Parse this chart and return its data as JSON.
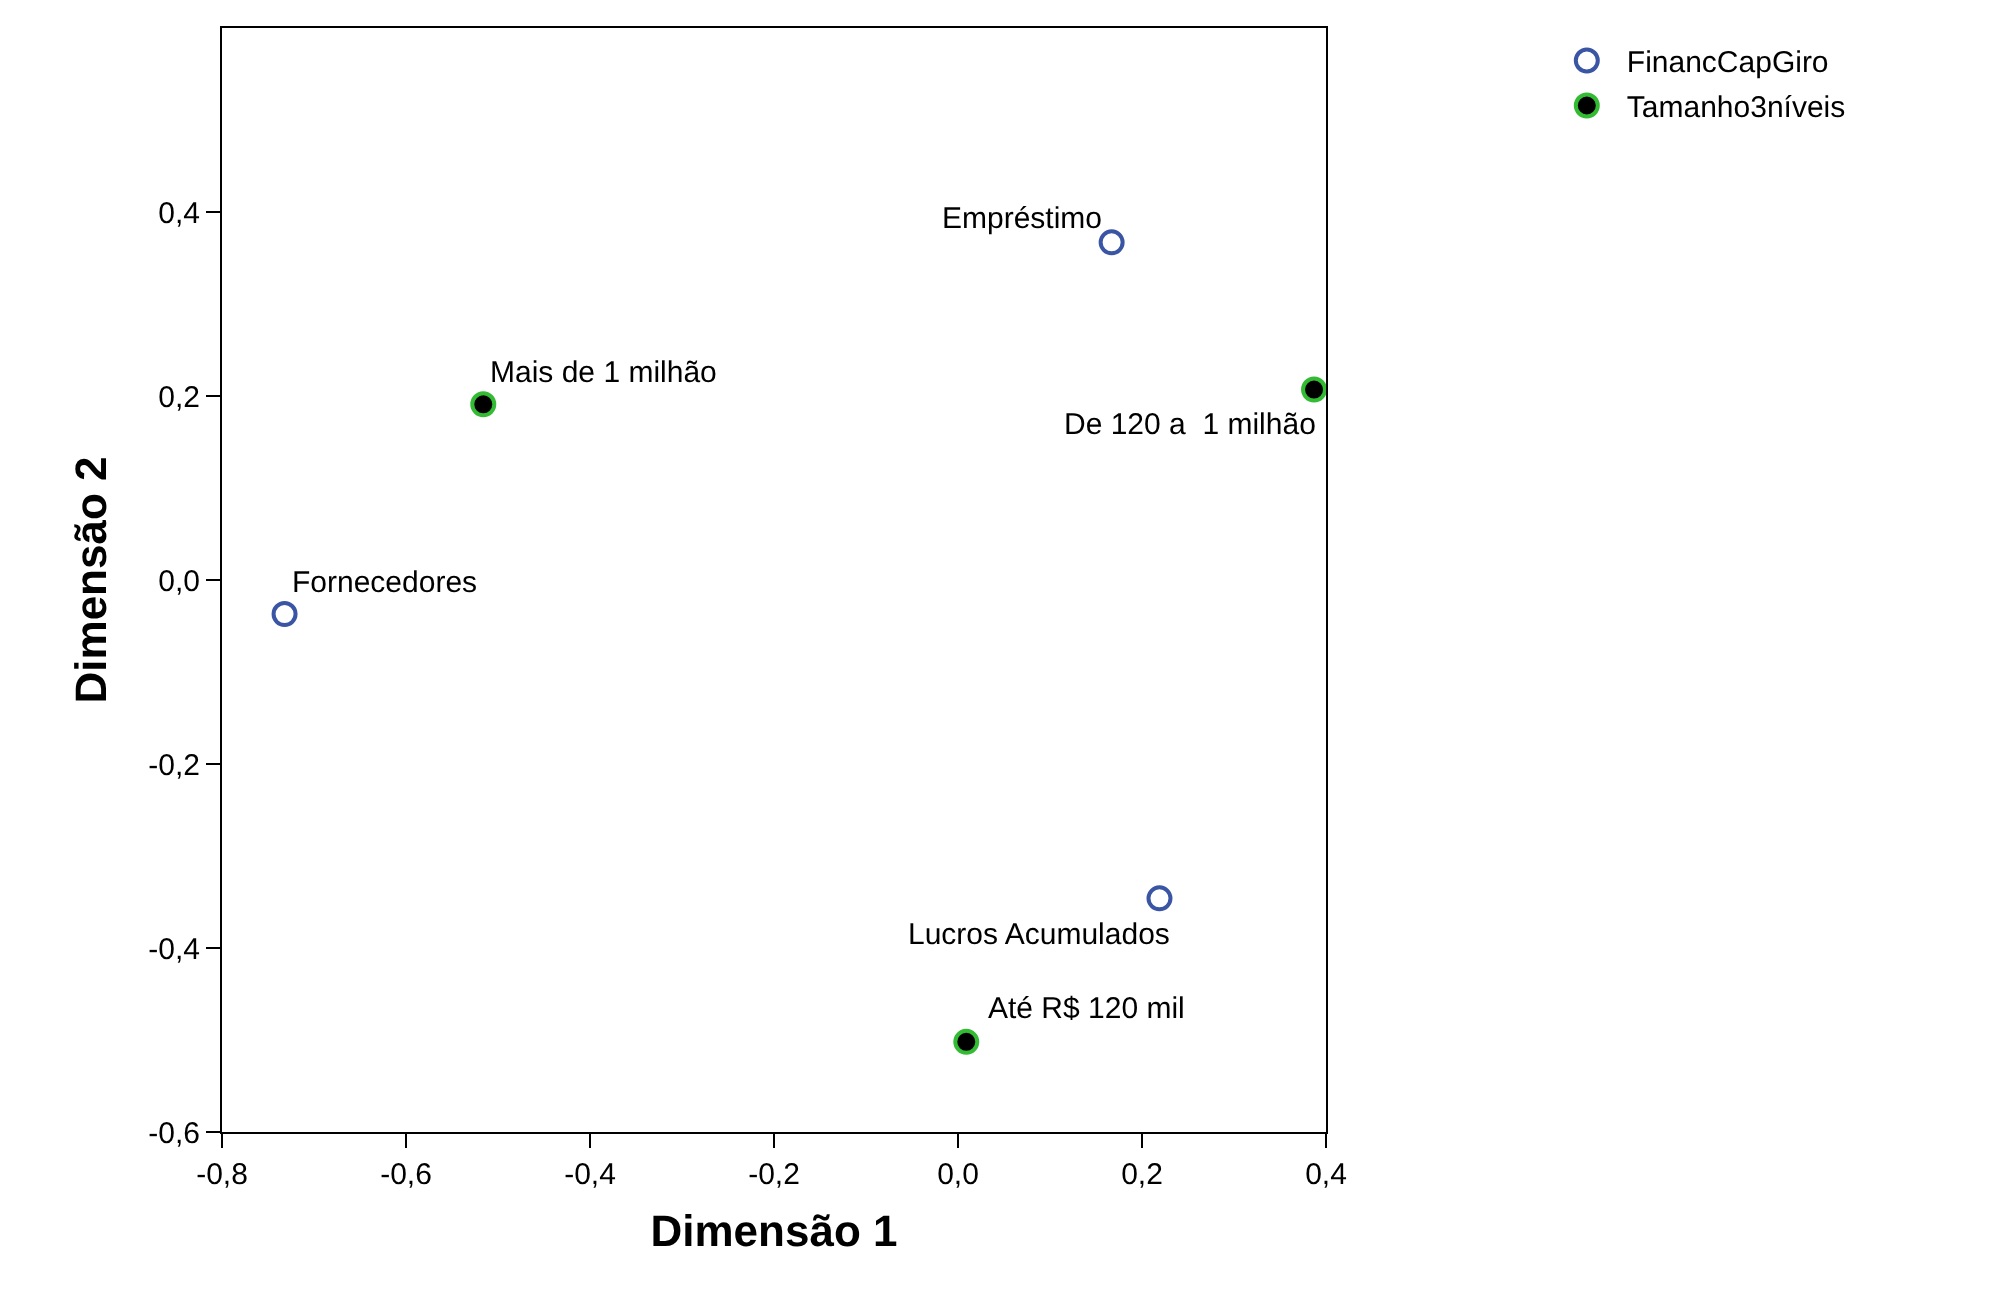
{
  "chart_data": {
    "type": "scatter",
    "xlabel": "Dimensão 1",
    "ylabel": "Dimensão 2",
    "xlim": [
      -0.8,
      0.4
    ],
    "ylim": [
      -0.6,
      0.6
    ],
    "xticks": [
      {
        "value": -0.8,
        "label": "-0,8"
      },
      {
        "value": -0.6,
        "label": "-0,6"
      },
      {
        "value": -0.4,
        "label": "-0,4"
      },
      {
        "value": -0.2,
        "label": "-0,2"
      },
      {
        "value": 0,
        "label": "0,0"
      },
      {
        "value": 0.2,
        "label": "0,2"
      },
      {
        "value": 0.4,
        "label": "0,4"
      }
    ],
    "yticks": [
      {
        "value": -0.6,
        "label": "-0,6"
      },
      {
        "value": -0.4,
        "label": "-0,4"
      },
      {
        "value": -0.2,
        "label": "-0,2"
      },
      {
        "value": 0,
        "label": "0,0"
      },
      {
        "value": 0.2,
        "label": "0,2"
      },
      {
        "value": 0.4,
        "label": "0,4"
      }
    ],
    "grid": false,
    "legend": "top right",
    "marker": "circle",
    "series": [
      {
        "name": "FinancCapGiro",
        "color": "#3a55a4",
        "x": [
          0.167,
          -0.732,
          0.219
        ],
        "values": [
          0.367,
          -0.037,
          -0.346
        ]
      },
      {
        "name": "Tamanho3níveis",
        "color": "#000000",
        "x": [
          -0.516,
          0.387,
          0.009
        ],
        "values": [
          0.191,
          0.207,
          -0.502
        ]
      }
    ],
    "annotations": [
      {
        "text": "Empréstimo",
        "x": 0.167,
        "y": 0.367
      },
      {
        "text": "Fornecedores",
        "x": -0.732,
        "y": -0.037
      },
      {
        "text": "Lucros Acumulados",
        "x": 0.219,
        "y": -0.346
      },
      {
        "text": "Mais de 1 milhão",
        "x": -0.516,
        "y": 0.191
      },
      {
        "text": "De 120 a  1 milhão",
        "x": 0.387,
        "y": 0.207
      },
      {
        "text": "Até R$ 120 mil",
        "x": 0.009,
        "y": -0.502
      }
    ]
  }
}
